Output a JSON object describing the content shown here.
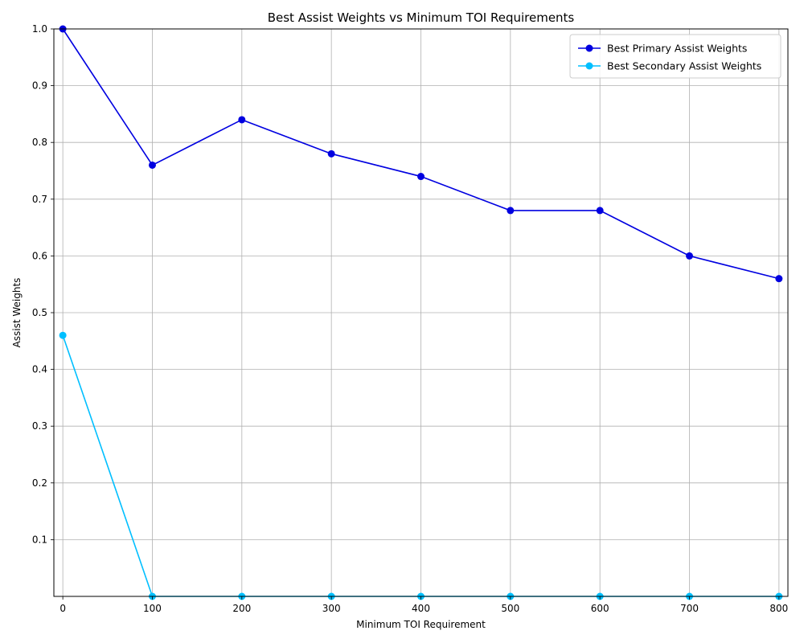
{
  "chart_data": {
    "type": "line",
    "title": "Best Assist Weights vs Minimum TOI Requirements",
    "xlabel": "Minimum TOI Requirement",
    "ylabel": "Assist Weights",
    "x": [
      0,
      100,
      200,
      300,
      400,
      500,
      600,
      700,
      800
    ],
    "xlim": [
      -10,
      810
    ],
    "ylim": [
      0,
      1.0
    ],
    "xticks": [
      0,
      100,
      200,
      300,
      400,
      500,
      600,
      700,
      800
    ],
    "yticks": [
      0.1,
      0.2,
      0.3,
      0.4,
      0.5,
      0.6,
      0.7,
      0.8,
      0.9,
      1.0
    ],
    "grid": true,
    "legend_position": "top-right",
    "series": [
      {
        "name": "Best Primary Assist Weights",
        "color": "#0000e0",
        "values": [
          1.0,
          0.76,
          0.84,
          0.78,
          0.74,
          0.68,
          0.68,
          0.6,
          0.56
        ]
      },
      {
        "name": "Best Secondary Assist Weights",
        "color": "#00bfff",
        "values": [
          0.46,
          0.0,
          0.0,
          0.0,
          0.0,
          0.0,
          0.0,
          0.0,
          0.0
        ]
      }
    ]
  }
}
